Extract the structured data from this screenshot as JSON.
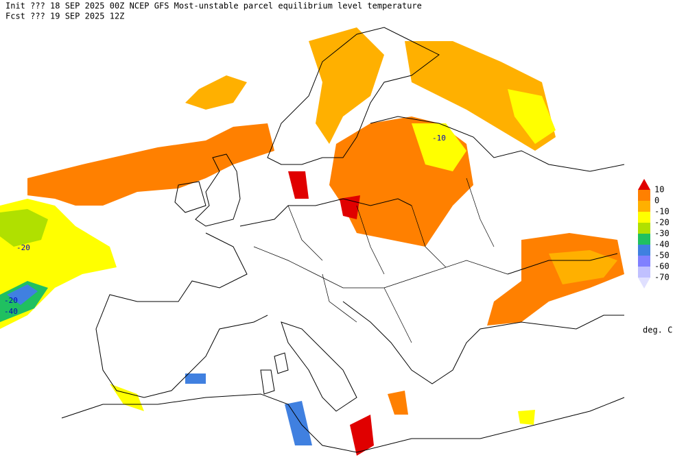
{
  "header": {
    "line1": "Init  ??? 18 SEP 2025 00Z  NCEP GFS Most-unstable parcel equilibrium level temperature",
    "line2": "Fcst ??? 19 SEP 2025 12Z"
  },
  "legend": {
    "items": [
      {
        "label": "10",
        "color": "#e00000"
      },
      {
        "label": "0",
        "color": "#ff8000"
      },
      {
        "label": "-10",
        "color": "#ffb000"
      },
      {
        "label": "-20",
        "color": "#ffff00"
      },
      {
        "label": "-30",
        "color": "#b0e000"
      },
      {
        "label": "-40",
        "color": "#20c060"
      },
      {
        "label": "-50",
        "color": "#4080e0"
      },
      {
        "label": "-60",
        "color": "#8080ff"
      },
      {
        "label": "-70",
        "color": "#c0c0ff"
      }
    ],
    "low_color": "#e0e0ff",
    "units": "deg. C"
  },
  "map": {
    "contour_labels": [
      "-10",
      "-20",
      "-20",
      "-40"
    ]
  }
}
